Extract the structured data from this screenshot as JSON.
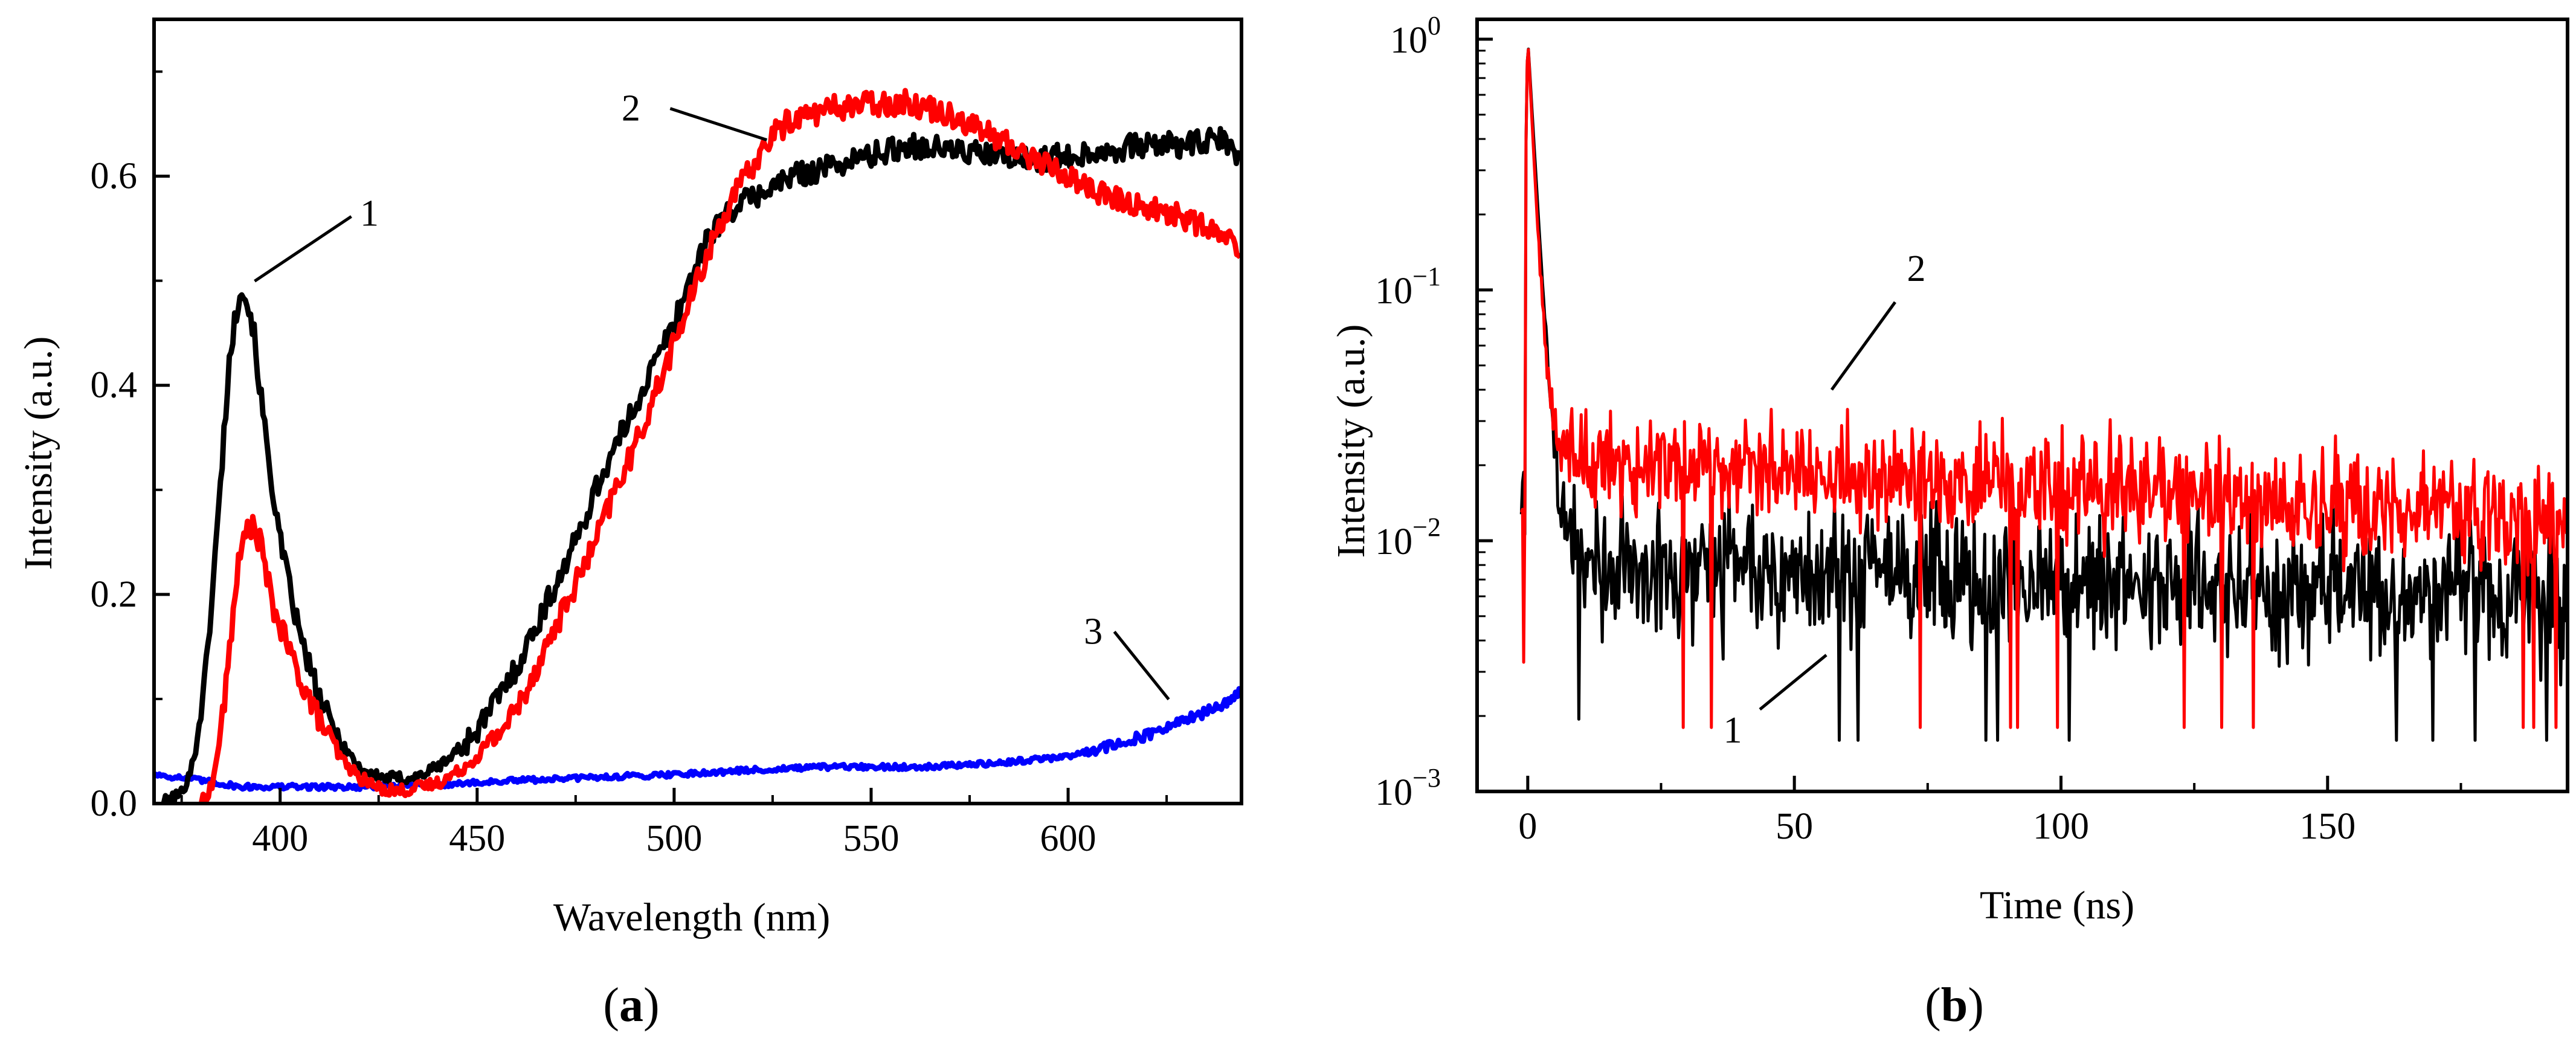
{
  "chart_data": [
    {
      "panel_label_prefix": "(",
      "panel_label_letter": "a",
      "panel_label_suffix": ")",
      "type": "line",
      "title": "",
      "xlabel": "Wavelength (nm)",
      "ylabel": "Intensity (a.u.)",
      "xlim": [
        368,
        644
      ],
      "ylim": [
        0,
        0.75
      ],
      "xticks": [
        400,
        450,
        500,
        550,
        600
      ],
      "xtick_labels": [
        "400",
        "450",
        "500",
        "550",
        "600"
      ],
      "yticks": [
        0,
        0.2,
        0.4,
        0.6
      ],
      "ytick_labels": [
        "0.0",
        "0.2",
        "0.4",
        "0.6"
      ],
      "grid": false,
      "series": [
        {
          "name": "1",
          "color": "#000000",
          "points": [
            [
              370,
              0.0
            ],
            [
              375,
              0.01
            ],
            [
              378,
              0.04
            ],
            [
              381,
              0.12
            ],
            [
              384,
              0.26
            ],
            [
              387,
              0.42
            ],
            [
              390,
              0.5
            ],
            [
              393,
              0.46
            ],
            [
              396,
              0.36
            ],
            [
              400,
              0.25
            ],
            [
              405,
              0.16
            ],
            [
              410,
              0.1
            ],
            [
              415,
              0.06
            ],
            [
              420,
              0.035
            ],
            [
              425,
              0.025
            ],
            [
              430,
              0.024
            ],
            [
              435,
              0.026
            ],
            [
              440,
              0.035
            ],
            [
              445,
              0.05
            ],
            [
              450,
              0.07
            ],
            [
              455,
              0.1
            ],
            [
              460,
              0.13
            ],
            [
              465,
              0.17
            ],
            [
              470,
              0.21
            ],
            [
              475,
              0.25
            ],
            [
              480,
              0.3
            ],
            [
              485,
              0.34
            ],
            [
              490,
              0.38
            ],
            [
              495,
              0.42
            ],
            [
              500,
              0.46
            ],
            [
              505,
              0.51
            ],
            [
              510,
              0.55
            ],
            [
              515,
              0.57
            ],
            [
              520,
              0.58
            ],
            [
              530,
              0.6
            ],
            [
              540,
              0.61
            ],
            [
              550,
              0.62
            ],
            [
              560,
              0.63
            ],
            [
              570,
              0.625
            ],
            [
              580,
              0.62
            ],
            [
              590,
              0.615
            ],
            [
              600,
              0.62
            ],
            [
              610,
              0.625
            ],
            [
              620,
              0.63
            ],
            [
              630,
              0.63
            ],
            [
              640,
              0.635
            ],
            [
              644,
              0.61
            ]
          ],
          "noise": 0.012
        },
        {
          "name": "2",
          "color": "#ff0000",
          "points": [
            [
              380,
              0.0
            ],
            [
              383,
              0.02
            ],
            [
              386,
              0.1
            ],
            [
              389,
              0.22
            ],
            [
              392,
              0.27
            ],
            [
              395,
              0.25
            ],
            [
              398,
              0.19
            ],
            [
              401,
              0.16
            ],
            [
              405,
              0.12
            ],
            [
              410,
              0.08
            ],
            [
              415,
              0.045
            ],
            [
              420,
              0.025
            ],
            [
              425,
              0.015
            ],
            [
              430,
              0.012
            ],
            [
              435,
              0.015
            ],
            [
              440,
              0.02
            ],
            [
              445,
              0.03
            ],
            [
              450,
              0.045
            ],
            [
              455,
              0.065
            ],
            [
              460,
              0.09
            ],
            [
              465,
              0.13
            ],
            [
              470,
              0.17
            ],
            [
              475,
              0.21
            ],
            [
              480,
              0.25
            ],
            [
              485,
              0.3
            ],
            [
              490,
              0.34
            ],
            [
              495,
              0.39
            ],
            [
              500,
              0.44
            ],
            [
              505,
              0.49
            ],
            [
              510,
              0.54
            ],
            [
              515,
              0.58
            ],
            [
              520,
              0.61
            ],
            [
              525,
              0.64
            ],
            [
              530,
              0.655
            ],
            [
              540,
              0.665
            ],
            [
              550,
              0.67
            ],
            [
              560,
              0.67
            ],
            [
              570,
              0.66
            ],
            [
              580,
              0.64
            ],
            [
              590,
              0.62
            ],
            [
              600,
              0.6
            ],
            [
              610,
              0.58
            ],
            [
              620,
              0.57
            ],
            [
              630,
              0.56
            ],
            [
              640,
              0.54
            ],
            [
              644,
              0.53
            ]
          ],
          "noise": 0.012
        },
        {
          "name": "3",
          "color": "#0000ff",
          "points": [
            [
              368,
              0.028
            ],
            [
              380,
              0.022
            ],
            [
              390,
              0.016
            ],
            [
              400,
              0.016
            ],
            [
              420,
              0.016
            ],
            [
              440,
              0.018
            ],
            [
              460,
              0.022
            ],
            [
              480,
              0.025
            ],
            [
              500,
              0.028
            ],
            [
              520,
              0.032
            ],
            [
              540,
              0.035
            ],
            [
              560,
              0.035
            ],
            [
              580,
              0.038
            ],
            [
              600,
              0.045
            ],
            [
              610,
              0.055
            ],
            [
              620,
              0.065
            ],
            [
              630,
              0.08
            ],
            [
              640,
              0.095
            ],
            [
              644,
              0.11
            ]
          ],
          "noise": 0.005
        }
      ],
      "annotations": [
        {
          "text": "1",
          "x": 392,
          "y": 0.495
        },
        {
          "text": "2",
          "x": 522,
          "y": 0.63
        },
        {
          "text": "3",
          "x": 624,
          "y": 0.095
        }
      ]
    },
    {
      "panel_label_prefix": "(",
      "panel_label_letter": "b",
      "panel_label_suffix": ")",
      "type": "line",
      "title": "",
      "xlabel": "Time (ns)",
      "ylabel": "Intensity (a.u.)",
      "xlim": [
        -9.5,
        195
      ],
      "ylog": true,
      "ylim": [
        0.001,
        1.2
      ],
      "xticks": [
        0,
        50,
        100,
        150
      ],
      "xtick_labels": [
        "0",
        "50",
        "100",
        "150"
      ],
      "yticks": [
        0.001,
        0.01,
        0.1,
        1
      ],
      "ytick_labels": [
        {
          "base": "10",
          "exp": "−3"
        },
        {
          "base": "10",
          "exp": "−2"
        },
        {
          "base": "10",
          "exp": "−1"
        },
        {
          "base": "10",
          "exp": "0"
        }
      ],
      "grid": false,
      "series": [
        {
          "name": "1",
          "color": "#000000",
          "peak_x": 0,
          "tau_fast_ns": 1.2,
          "baseline": 0.008,
          "baseline_decay_ns": 600,
          "noise_log10": 0.25,
          "floor": 0.0016
        },
        {
          "name": "2",
          "color": "#ff0000",
          "peak_x": 0,
          "tau_fast_ns": 1.0,
          "baseline": 0.022,
          "baseline_decay_ns": 320,
          "noise_log10": 0.2,
          "floor": 0.0018
        }
      ],
      "annotations": [
        {
          "text": "1",
          "x": 56,
          "y": 0.0035
        },
        {
          "text": "2",
          "x": 57,
          "y": 0.04
        }
      ]
    }
  ]
}
